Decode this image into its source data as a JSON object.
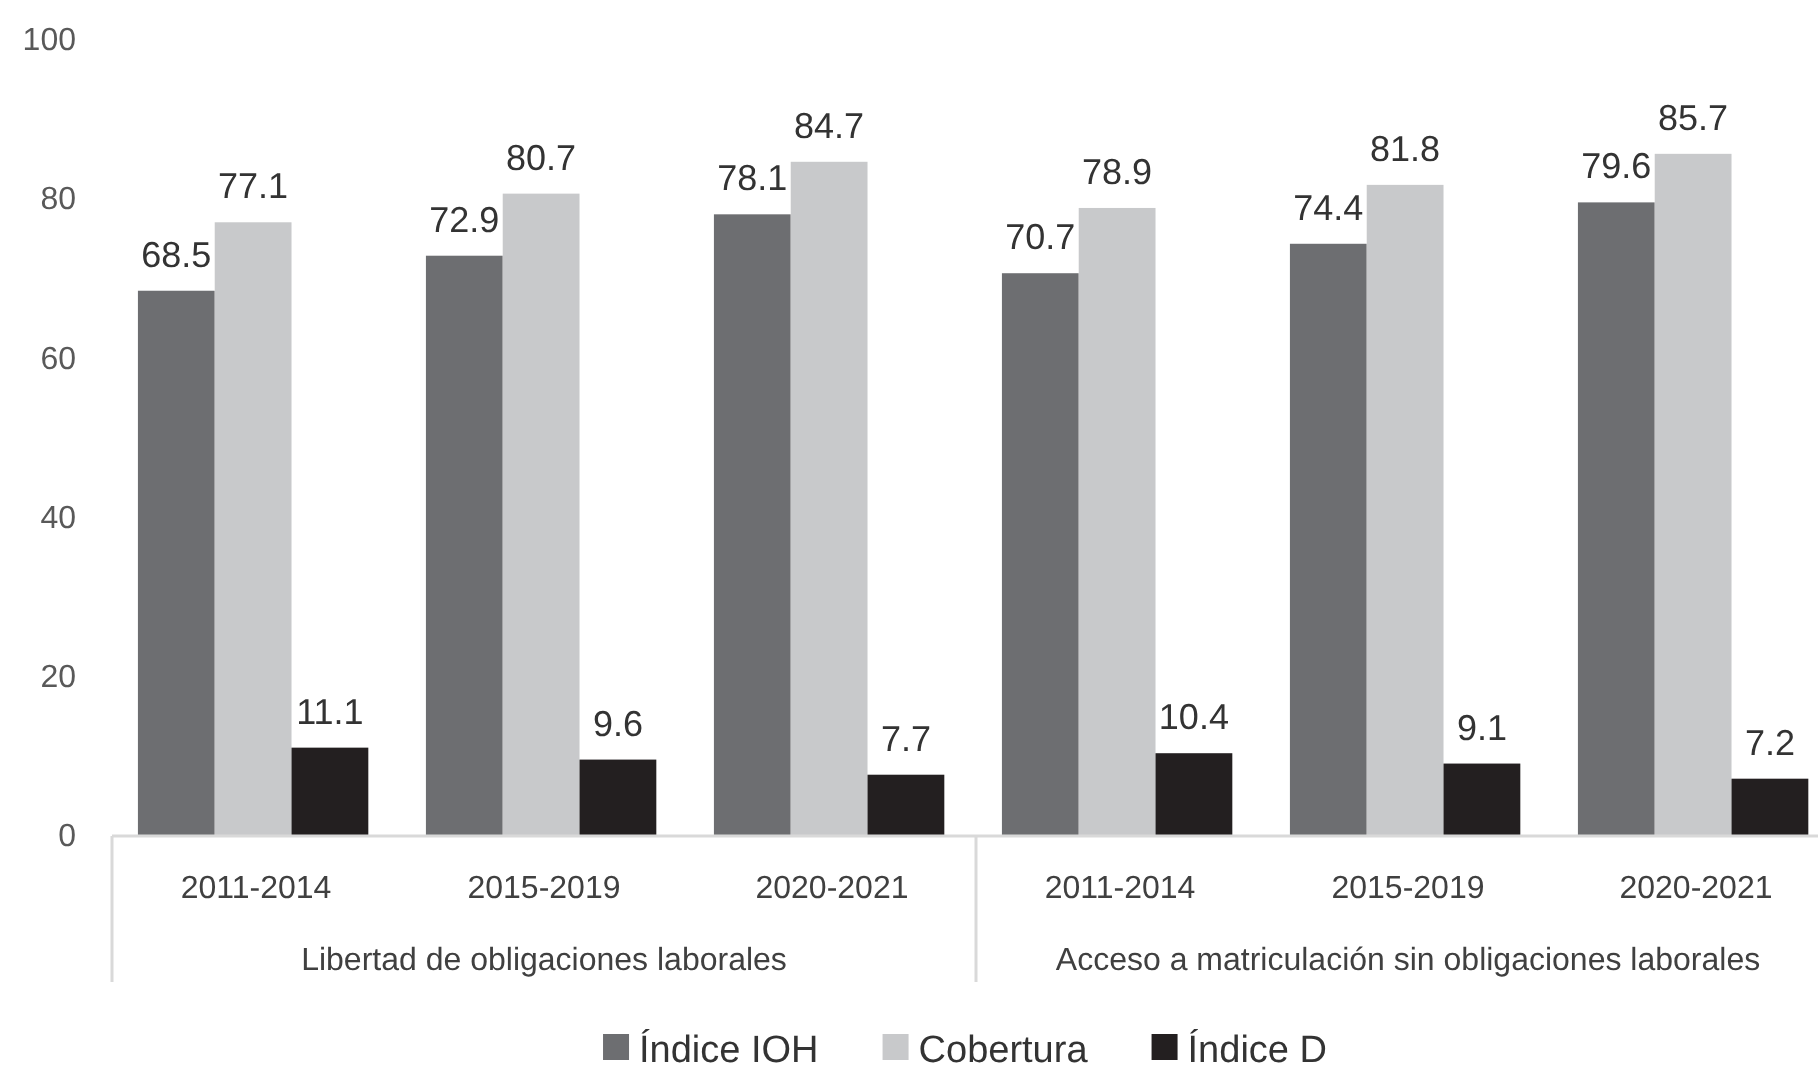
{
  "chart_data": {
    "type": "bar",
    "categories": [
      "2011-2014",
      "2015-2019",
      "2020-2021",
      "2011-2014",
      "2015-2019",
      "2020-2021"
    ],
    "series": [
      {
        "name": "Índice IOH",
        "color": "#6d6e71",
        "values": [
          68.5,
          72.9,
          78.1,
          70.7,
          74.4,
          79.6
        ]
      },
      {
        "name": "Cobertura",
        "color": "#c8c9cb",
        "values": [
          77.1,
          80.7,
          84.7,
          78.9,
          81.8,
          85.7
        ]
      },
      {
        "name": "Índice D",
        "color": "#231f20",
        "values": [
          11.1,
          9.6,
          7.7,
          10.4,
          9.1,
          7.2
        ]
      }
    ],
    "ylim": [
      0,
      100
    ],
    "yticks": [
      0,
      20,
      40,
      60,
      80,
      100
    ],
    "data_labels": true,
    "legend": "bottom",
    "annotations": [
      "Libertad de obligaciones laborales",
      "Acceso a matriculación sin obligaciones laborales"
    ]
  }
}
